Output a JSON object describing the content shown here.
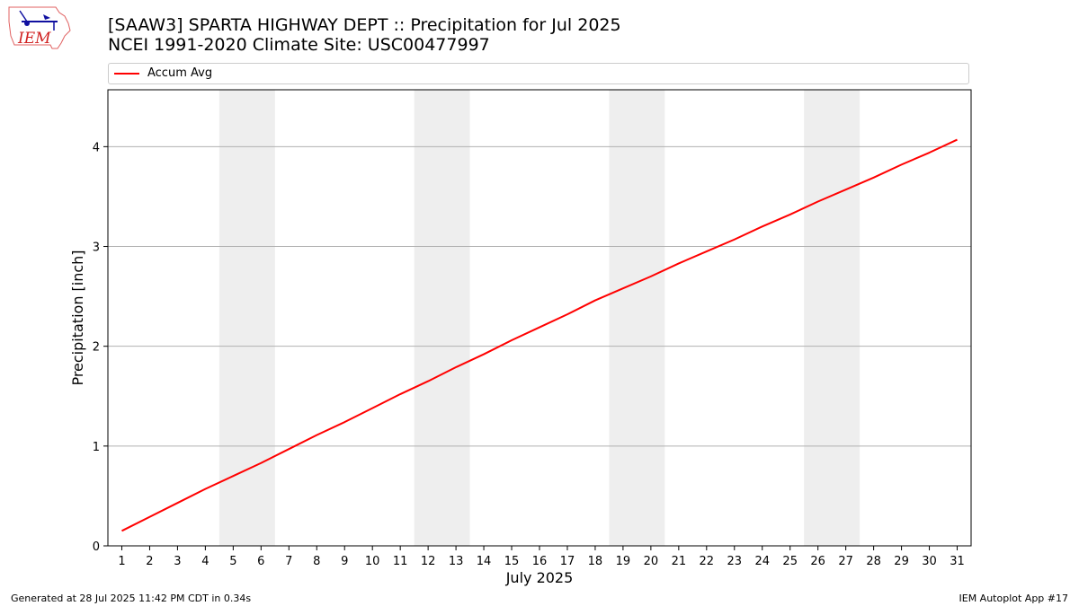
{
  "header": {
    "title_line1": "[SAAW3] SPARTA HIGHWAY DEPT :: Precipitation for Jul 2025",
    "title_line2": "NCEI 1991-2020 Climate Site: USC00477997"
  },
  "logo": {
    "text": "IEM",
    "icon": "iem-logo-icon"
  },
  "footer": {
    "left": "Generated at 28 Jul 2025 11:42 PM CDT in 0.34s",
    "right": "IEM Autoplot App #17"
  },
  "colors": {
    "line": "#ff0000",
    "weekend": "#eeeeee",
    "grid": "#b0b0b0"
  },
  "chart_data": {
    "type": "line",
    "xlabel": "July 2025",
    "ylabel": "Precipitation [inch]",
    "xlim": [
      0.5,
      31.5
    ],
    "ylim": [
      0,
      4.57
    ],
    "yticks": [
      0,
      1,
      2,
      3,
      4
    ],
    "xticks": [
      1,
      2,
      3,
      4,
      5,
      6,
      7,
      8,
      9,
      10,
      11,
      12,
      13,
      14,
      15,
      16,
      17,
      18,
      19,
      20,
      21,
      22,
      23,
      24,
      25,
      26,
      27,
      28,
      29,
      30,
      31
    ],
    "grid": "y",
    "legend": "top",
    "shaded_spans": [
      [
        4.5,
        6.5
      ],
      [
        11.5,
        13.5
      ],
      [
        18.5,
        20.5
      ],
      [
        25.5,
        27.5
      ]
    ],
    "series": [
      {
        "name": "Accum Avg",
        "x": [
          1,
          2,
          3,
          4,
          5,
          6,
          7,
          8,
          9,
          10,
          11,
          12,
          13,
          14,
          15,
          16,
          17,
          18,
          19,
          20,
          21,
          22,
          23,
          24,
          25,
          26,
          27,
          28,
          29,
          30,
          31
        ],
        "values": [
          0.15,
          0.29,
          0.43,
          0.57,
          0.7,
          0.83,
          0.97,
          1.11,
          1.24,
          1.38,
          1.52,
          1.65,
          1.79,
          1.92,
          2.06,
          2.19,
          2.32,
          2.46,
          2.58,
          2.7,
          2.83,
          2.95,
          3.07,
          3.2,
          3.32,
          3.45,
          3.57,
          3.69,
          3.82,
          3.94,
          4.07
        ]
      }
    ]
  }
}
